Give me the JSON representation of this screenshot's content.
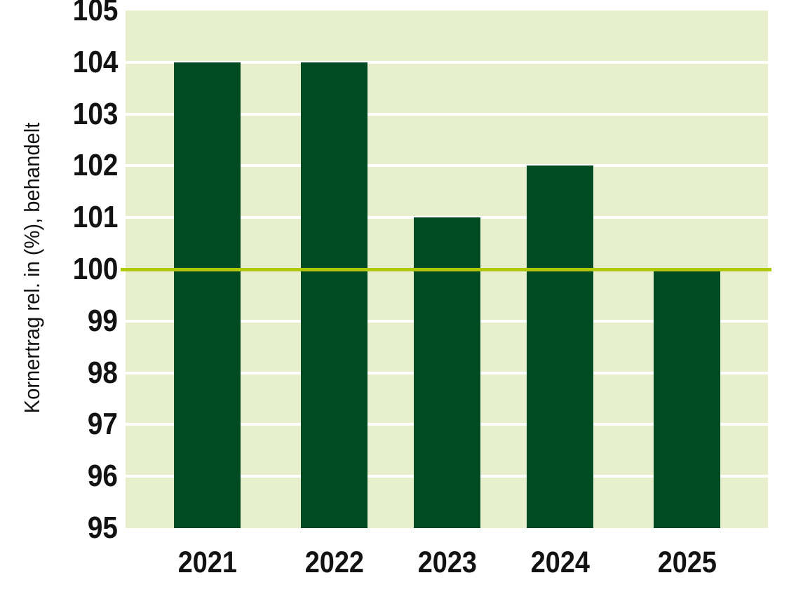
{
  "chart_data": {
    "type": "bar",
    "title": "",
    "xlabel": "",
    "ylabel": "Kornertrag rel. in (%), behandelt",
    "categories": [
      "2021",
      "2022",
      "2023",
      "2024",
      "2025"
    ],
    "values": [
      104,
      104,
      101,
      102,
      100
    ],
    "ylim": [
      95,
      105
    ],
    "yticks": [
      95,
      96,
      97,
      98,
      99,
      100,
      101,
      102,
      103,
      104,
      105
    ],
    "baseline": {
      "value": 100
    },
    "grid": "horizontal",
    "legend_position": "none",
    "colors": {
      "bar": "#004b22",
      "plot_background": "#e8efcd",
      "baseline_line": "#b0c800",
      "gridline": "#ffffff",
      "text": "#121212",
      "page_background": "#ffffff"
    }
  }
}
